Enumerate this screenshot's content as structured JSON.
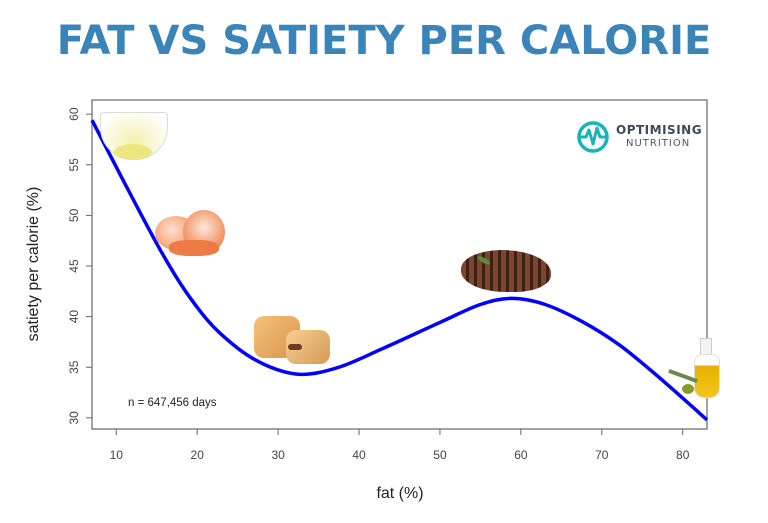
{
  "title": "FAT VS SATIETY PER CALORIE",
  "logo": {
    "line1": "OPTIMISING",
    "line2": "NUTRITION",
    "color": "#1ab3b8"
  },
  "chart_data": {
    "type": "line",
    "title": "FAT VS SATIETY PER CALORIE",
    "xlabel": "fat (%)",
    "ylabel": "satiety per calorie (%)",
    "xlim": [
      7,
      83
    ],
    "ylim": [
      28.9,
      61.4
    ],
    "xticks": [
      10,
      20,
      30,
      40,
      50,
      60,
      70,
      80
    ],
    "yticks": [
      30,
      35,
      40,
      45,
      50,
      55,
      60
    ],
    "grid": false,
    "annotation": "n = 647,456 days",
    "series": [
      {
        "color": "#0000ff",
        "x": [
          7.0,
          15.5,
          20.4,
          24.5,
          28.5,
          32.8,
          37.5,
          42.8,
          50.2,
          55.0,
          58.9,
          63.0,
          67.6,
          72.0,
          75.9,
          79.5,
          83.0
        ],
        "y": [
          59.4,
          46.5,
          40.5,
          37.2,
          35.2,
          34.3,
          35.0,
          36.8,
          39.5,
          41.2,
          41.8,
          41.2,
          39.5,
          37.3,
          34.8,
          32.3,
          29.8
        ]
      }
    ],
    "food_markers": [
      "egg-white-bowl",
      "shrimp",
      "scones",
      "steak",
      "olive-oil"
    ]
  }
}
